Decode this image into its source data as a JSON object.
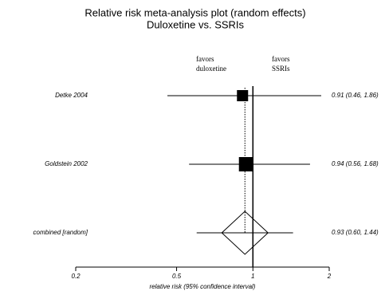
{
  "chart_data": {
    "type": "forest",
    "title": "Relative risk meta-analysis plot (random effects)",
    "subtitle": "Duloxetine vs. SSRIs",
    "left_label": [
      "favors",
      "duloxetine"
    ],
    "right_label": [
      "favors",
      "SSRIs"
    ],
    "xlabel": "relative risk (95% confidence interval)",
    "categories": [
      "Detke 2004",
      "Goldstein 2002",
      "combined [random]"
    ],
    "values": [
      0.91,
      0.94,
      0.93
    ],
    "lower": [
      0.46,
      0.56,
      0.6
    ],
    "upper": [
      1.86,
      1.68,
      1.44
    ],
    "value_labels": [
      "0.91 (0.46, 1.86)",
      "0.94 (0.56, 1.68)",
      "0.93 (0.60, 1.44)"
    ],
    "pooled": [
      false,
      false,
      true
    ],
    "reference": 1,
    "xscale": "log",
    "xlim": [
      0.2,
      2
    ],
    "xticks": [
      0.2,
      0.5,
      1,
      2
    ]
  }
}
